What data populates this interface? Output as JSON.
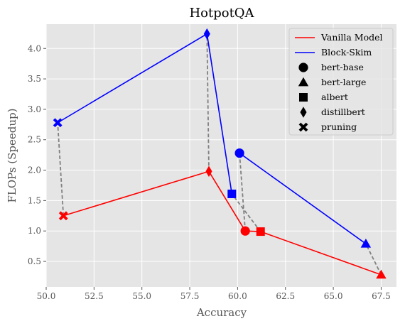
{
  "chart_data": {
    "type": "scatter",
    "title": "HotpotQA",
    "xlabel": "Accuracy",
    "ylabel": "FLOPs (Speedup)",
    "xlim": [
      50.0,
      68.3
    ],
    "ylim": [
      0.08,
      4.4
    ],
    "xticks": [
      "50.0",
      "52.5",
      "55.0",
      "57.5",
      "60.0",
      "62.5",
      "65.0",
      "67.5"
    ],
    "xtick_values": [
      50.0,
      52.5,
      55.0,
      57.5,
      60.0,
      62.5,
      65.0,
      67.5
    ],
    "yticks": [
      "0.5",
      "1.0",
      "1.5",
      "2.0",
      "2.5",
      "3.0",
      "3.5",
      "4.0"
    ],
    "ytick_values": [
      0.5,
      1.0,
      1.5,
      2.0,
      2.5,
      3.0,
      3.5,
      4.0
    ],
    "grid": true,
    "legend_position": "top-right",
    "connector_color": "#808080",
    "series": [
      {
        "name": "Vanilla Model",
        "color": "#ff0000",
        "points": [
          {
            "model": "pruning",
            "x": 50.9,
            "y": 1.25
          },
          {
            "model": "distillbert",
            "x": 58.5,
            "y": 1.98
          },
          {
            "model": "bert-base",
            "x": 60.4,
            "y": 1.0
          },
          {
            "model": "albert",
            "x": 61.2,
            "y": 0.99
          },
          {
            "model": "bert-large",
            "x": 67.5,
            "y": 0.28
          }
        ]
      },
      {
        "name": "Block-Skim",
        "color": "#0000ff",
        "points": [
          {
            "model": "pruning",
            "x": 50.6,
            "y": 2.78
          },
          {
            "model": "distillbert",
            "x": 58.4,
            "y": 4.24
          },
          {
            "model": "albert",
            "x": 59.7,
            "y": 1.61
          },
          {
            "model": "bert-base",
            "x": 60.1,
            "y": 2.28
          },
          {
            "model": "bert-large",
            "x": 66.7,
            "y": 0.79
          }
        ]
      }
    ],
    "blockskim_segments": [
      [
        "pruning",
        "distillbert",
        "albert"
      ],
      [
        "bert-base",
        "bert-large"
      ]
    ],
    "legend": {
      "lines": [
        {
          "label": "Vanilla Model",
          "color": "#ff0000"
        },
        {
          "label": "Block-Skim",
          "color": "#0000ff"
        }
      ],
      "markers": [
        {
          "label": "bert-base",
          "marker": "circle-icon"
        },
        {
          "label": "bert-large",
          "marker": "triangle-icon"
        },
        {
          "label": "albert",
          "marker": "square-icon"
        },
        {
          "label": "distillbert",
          "marker": "diamond-icon"
        },
        {
          "label": "pruning",
          "marker": "x-icon"
        }
      ]
    },
    "background": "#e5e5e5",
    "grid_color": "#ffffff"
  }
}
